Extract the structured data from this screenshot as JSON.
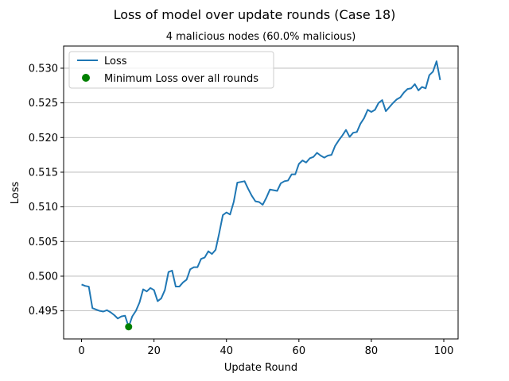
{
  "chart_data": {
    "type": "line",
    "title": "Loss of model over update rounds (Case 18)",
    "subtitle": "4 malicious nodes (60.0% malicious)",
    "xlabel": "Update Round",
    "ylabel": "Loss",
    "xlim": [
      -4.95,
      103.95
    ],
    "ylim": [
      0.49095,
      0.5332
    ],
    "xticks": [
      0,
      20,
      40,
      60,
      80,
      100
    ],
    "xtick_labels": [
      "0",
      "20",
      "40",
      "60",
      "80",
      "100"
    ],
    "yticks": [
      0.495,
      0.5,
      0.505,
      0.51,
      0.515,
      0.52,
      0.525,
      0.53
    ],
    "ytick_labels": [
      "0.495",
      "0.500",
      "0.505",
      "0.510",
      "0.515",
      "0.520",
      "0.525",
      "0.530"
    ],
    "grid": "horizontal",
    "legend_position": "top-left",
    "series": [
      {
        "name": "Loss",
        "color": "#1f77b4",
        "x": [
          0,
          1,
          2,
          3,
          4,
          5,
          6,
          7,
          8,
          9,
          10,
          11,
          12,
          13,
          14,
          15,
          16,
          17,
          18,
          19,
          20,
          21,
          22,
          23,
          24,
          25,
          26,
          27,
          28,
          29,
          30,
          31,
          32,
          33,
          34,
          35,
          36,
          37,
          38,
          39,
          40,
          41,
          42,
          43,
          44,
          45,
          46,
          47,
          48,
          49,
          50,
          51,
          52,
          53,
          54,
          55,
          56,
          57,
          58,
          59,
          60,
          61,
          62,
          63,
          64,
          65,
          66,
          67,
          68,
          69,
          70,
          71,
          72,
          73,
          74,
          75,
          76,
          77,
          78,
          79,
          80,
          81,
          82,
          83,
          84,
          85,
          86,
          87,
          88,
          89,
          90,
          91,
          92,
          93,
          94,
          95,
          96,
          97,
          98,
          99
        ],
        "values": [
          0.4988,
          0.4986,
          0.4985,
          0.4954,
          0.4952,
          0.495,
          0.4949,
          0.4951,
          0.4948,
          0.4944,
          0.4939,
          0.4942,
          0.4943,
          0.4927,
          0.4942,
          0.495,
          0.4962,
          0.4981,
          0.4978,
          0.4983,
          0.498,
          0.4964,
          0.4968,
          0.498,
          0.5006,
          0.5008,
          0.4985,
          0.4985,
          0.4991,
          0.4995,
          0.501,
          0.5013,
          0.5013,
          0.5025,
          0.5027,
          0.5036,
          0.5032,
          0.5038,
          0.5062,
          0.5088,
          0.5092,
          0.5089,
          0.5107,
          0.5135,
          0.5136,
          0.5137,
          0.5126,
          0.5116,
          0.5108,
          0.5107,
          0.5103,
          0.5113,
          0.5125,
          0.5124,
          0.5123,
          0.5134,
          0.5137,
          0.5138,
          0.5147,
          0.5147,
          0.5162,
          0.5167,
          0.5164,
          0.517,
          0.5172,
          0.5178,
          0.5174,
          0.5171,
          0.5174,
          0.5175,
          0.5188,
          0.5196,
          0.5203,
          0.5211,
          0.5201,
          0.5207,
          0.5208,
          0.522,
          0.5228,
          0.524,
          0.5237,
          0.524,
          0.525,
          0.5254,
          0.5238,
          0.5244,
          0.525,
          0.5255,
          0.5258,
          0.5265,
          0.527,
          0.5271,
          0.5277,
          0.5268,
          0.5273,
          0.5271,
          0.529,
          0.5295,
          0.531,
          0.5283
        ]
      },
      {
        "name": "Minimum Loss over all rounds",
        "color": "#008000",
        "marker": "point",
        "x": [
          13
        ],
        "values": [
          0.4927
        ]
      }
    ]
  }
}
